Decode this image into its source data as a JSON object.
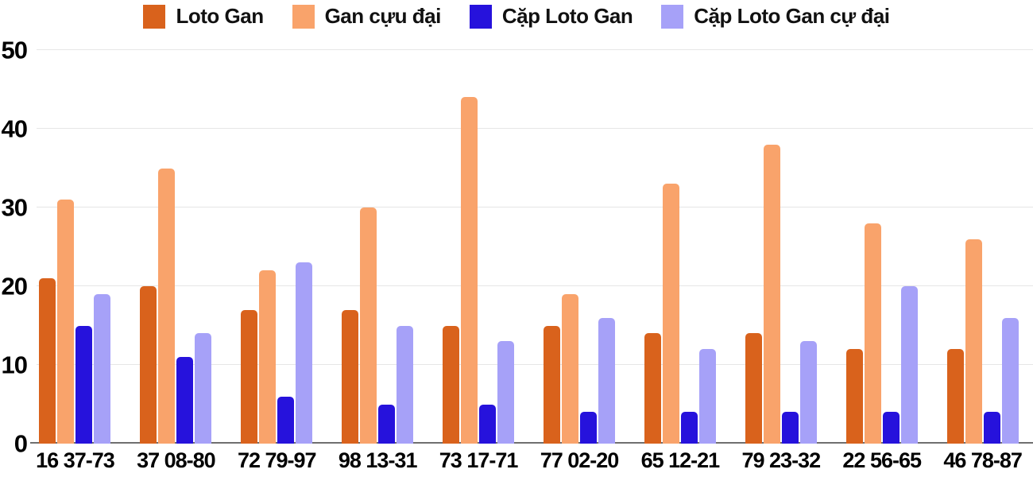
{
  "chart_data": {
    "type": "bar",
    "title": "",
    "xlabel": "",
    "ylabel": "",
    "ylim": [
      0,
      50
    ],
    "yticks": [
      0,
      10,
      20,
      30,
      40,
      50
    ],
    "grid": true,
    "legend_position": "top",
    "background": "#ffffff",
    "gridline_color": "#e6e6e6",
    "baseline_color": "#6f6f6f",
    "categories": [
      "16 37-73",
      "37 08-80",
      "72 79-97",
      "98 13-31",
      "73 17-71",
      "77 02-20",
      "65 12-21",
      "79 23-32",
      "22 56-65",
      "46 78-87"
    ],
    "series": [
      {
        "name": "Loto Gan",
        "color": "#d9621c",
        "values": [
          21,
          20,
          17,
          17,
          15,
          15,
          14,
          14,
          12,
          12
        ]
      },
      {
        "name": "Gan cựu đại",
        "color": "#f9a36b",
        "values": [
          31,
          35,
          22,
          30,
          44,
          19,
          33,
          38,
          28,
          26
        ]
      },
      {
        "name": "Cặp Loto Gan",
        "color": "#2612dc",
        "values": [
          15,
          11,
          6,
          5,
          5,
          4,
          4,
          4,
          4,
          4
        ]
      },
      {
        "name": "Cặp Loto Gan cự đại",
        "color": "#a6a1f8",
        "values": [
          19,
          14,
          23,
          15,
          13,
          16,
          12,
          13,
          20,
          16
        ]
      }
    ]
  }
}
